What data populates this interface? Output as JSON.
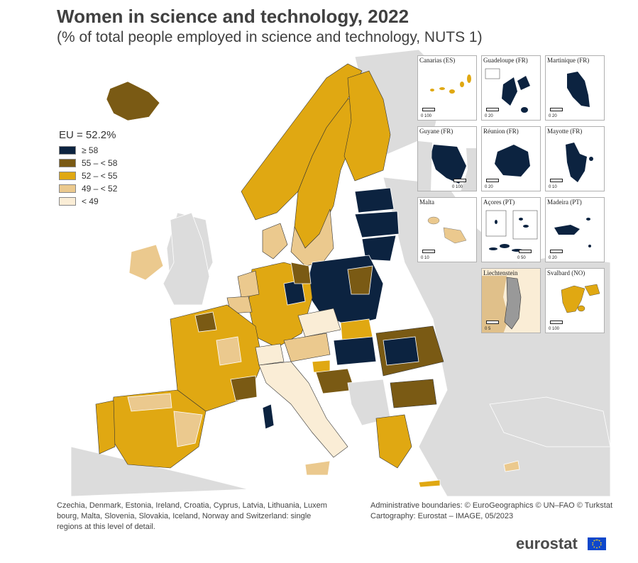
{
  "title": "Women in science and technology, 2022",
  "subtitle": "(% of total people employed in science and technology, NUTS 1)",
  "legend": {
    "title": "EU = 52.2%",
    "classes": [
      {
        "label": "≥ 58",
        "color": "#0c2340"
      },
      {
        "label": "55 – < 58",
        "color": "#7a5a14"
      },
      {
        "label": "52 – < 55",
        "color": "#e0a812"
      },
      {
        "label": "49 – < 52",
        "color": "#ebc98e"
      },
      {
        "label": "< 49",
        "color": "#faedd6"
      }
    ],
    "no_data_color": "#dcdcdc"
  },
  "insets": [
    {
      "label": "Canarias (ES)",
      "scale": "0   100"
    },
    {
      "label": "Guadeloupe (FR)",
      "scale": "0   20"
    },
    {
      "label": "Martinique (FR)",
      "scale": "0   20"
    },
    {
      "label": "Guyane (FR)",
      "scale": "0   100"
    },
    {
      "label": "Réunion (FR)",
      "scale": "0   20"
    },
    {
      "label": "Mayotte (FR)",
      "scale": "0   10"
    },
    {
      "label": "Malta",
      "scale": "0   10"
    },
    {
      "label": "Açores (PT)",
      "scale": "0   50"
    },
    {
      "label": "Madeira (PT)",
      "scale": "0   20"
    },
    {
      "label": "Liechtenstein",
      "scale": "0   5"
    },
    {
      "label": "Svalbard (NO)",
      "scale": "0   100"
    }
  ],
  "footer": {
    "note": "Czechia, Denmark, Estonia, Ireland, Croatia, Cyprus, Latvia, Lithuania, Luxembourg, Malta, Slovenia, Slovakia, Iceland, Norway and Switzerland: single regions at this level of detail.",
    "note_line1": "Czechia, Denmark, Estonia, Ireland, Croatia, Cyprus, Latvia, Lithuania, Luxem",
    "note_line2": "bourg, Malta, Slovenia, Slovakia, Iceland, Norway and Switzerland: single",
    "note_line3": "regions at this level of detail.",
    "credits_line1": "Administrative boundaries: © EuroGeographics © UN–FAO © Turkstat",
    "credits_line2": "Cartography: Eurostat – IMAGE, 05/2023"
  },
  "brand": "eurostat"
}
